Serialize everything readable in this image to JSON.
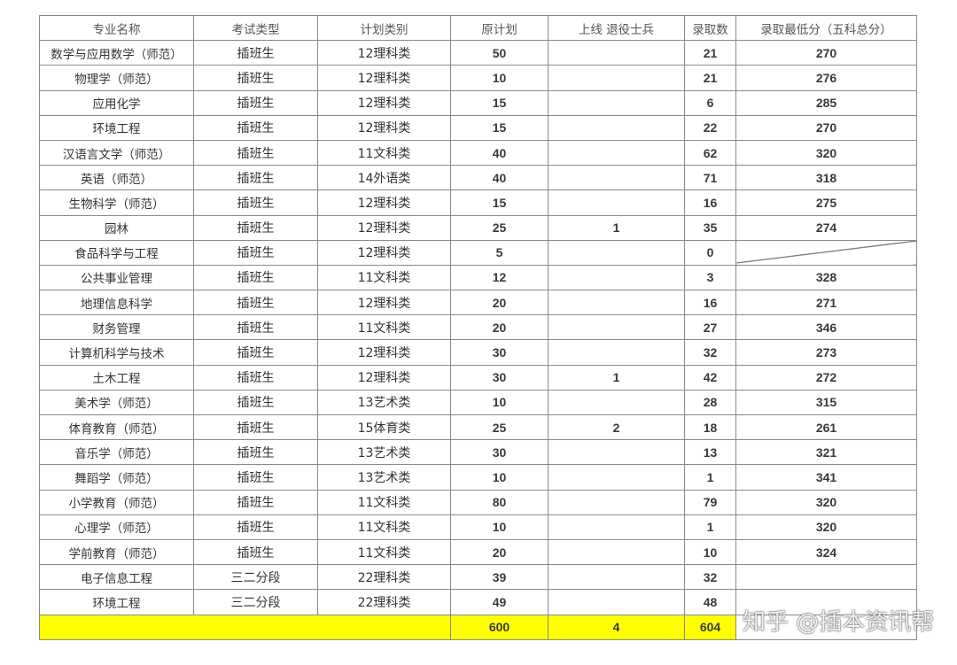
{
  "headers": [
    "专业名称",
    "考试类型",
    "计划类别",
    "原计划",
    "上线 退役士兵",
    "录取数",
    "录取最低分（五科总分）"
  ],
  "rows": [
    [
      "数学与应用数学（师范）",
      "插班生",
      "12理科类",
      "50",
      "",
      "21",
      "270"
    ],
    [
      "物理学（师范）",
      "插班生",
      "12理科类",
      "10",
      "",
      "21",
      "276"
    ],
    [
      "应用化学",
      "插班生",
      "12理科类",
      "15",
      "",
      "6",
      "285"
    ],
    [
      "环境工程",
      "插班生",
      "12理科类",
      "15",
      "",
      "22",
      "270"
    ],
    [
      "汉语言文学（师范）",
      "插班生",
      "11文科类",
      "40",
      "",
      "62",
      "320"
    ],
    [
      "英语（师范）",
      "插班生",
      "14外语类",
      "40",
      "",
      "71",
      "318"
    ],
    [
      "生物科学（师范）",
      "插班生",
      "12理科类",
      "15",
      "",
      "16",
      "275"
    ],
    [
      "园林",
      "插班生",
      "12理科类",
      "25",
      "1",
      "35",
      "274"
    ],
    [
      "食品科学与工程",
      "插班生",
      "12理科类",
      "5",
      "",
      "0",
      ""
    ],
    [
      "公共事业管理",
      "插班生",
      "11文科类",
      "12",
      "",
      "3",
      "328"
    ],
    [
      "地理信息科学",
      "插班生",
      "12理科类",
      "20",
      "",
      "16",
      "271"
    ],
    [
      "财务管理",
      "插班生",
      "11文科类",
      "20",
      "",
      "27",
      "346"
    ],
    [
      "计算机科学与技术",
      "插班生",
      "12理科类",
      "30",
      "",
      "32",
      "273"
    ],
    [
      "土木工程",
      "插班生",
      "12理科类",
      "30",
      "1",
      "42",
      "272"
    ],
    [
      "美术学（师范）",
      "插班生",
      "13艺术类",
      "10",
      "",
      "28",
      "315"
    ],
    [
      "体育教育（师范）",
      "插班生",
      "15体育类",
      "25",
      "2",
      "18",
      "261"
    ],
    [
      "音乐学（师范）",
      "插班生",
      "13艺术类",
      "30",
      "",
      "13",
      "321"
    ],
    [
      "舞蹈学（师范）",
      "插班生",
      "13艺术类",
      "10",
      "",
      "1",
      "341"
    ],
    [
      "小学教育（师范）",
      "插班生",
      "11文科类",
      "80",
      "",
      "79",
      "320"
    ],
    [
      "心理学（师范）",
      "插班生",
      "11文科类",
      "10",
      "",
      "1",
      "320"
    ],
    [
      "学前教育（师范）",
      "插班生",
      "11文科类",
      "20",
      "",
      "10",
      "324"
    ],
    [
      "电子信息工程",
      "三二分段",
      "22理科类",
      "39",
      "",
      "32",
      ""
    ],
    [
      "环境工程",
      "三二分段",
      "22理科类",
      "49",
      "",
      "48",
      ""
    ]
  ],
  "total": {
    "plan": "600",
    "veterans": "4",
    "admitted": "604"
  },
  "highlight_color": "#ffff00",
  "watermark": "知乎 @插本资讯帮"
}
